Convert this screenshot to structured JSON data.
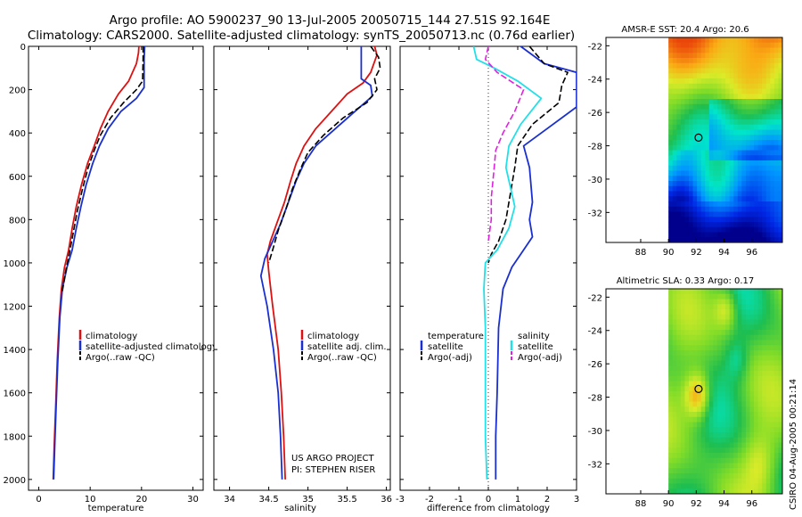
{
  "header": {
    "title_line1": "Argo profile: AO 5900237_90 13-Jul-2005 20050715_144 27.51S 92.164E",
    "title_line2": "Climatology: CARS2000. Satellite-adjusted climatology: synTS_20050713.nc (0.76d earlier)"
  },
  "side_label": "CSIRO 04-Aug-2005 00:21:14",
  "project_note": {
    "line1": "US ARGO PROJECT",
    "line2": "PI: STEPHEN RISER"
  },
  "colors": {
    "climatology": "#dd1111",
    "satellite": "#1a2fd0",
    "argo": "#000000",
    "salinity": "#22e0e8",
    "salinity_argo": "#e020e0"
  },
  "chart_data": [
    {
      "type": "line",
      "name": "temperature",
      "xlabel": "temperature",
      "ylabel": "",
      "xlim": [
        -2,
        32
      ],
      "ylim": [
        2050,
        0
      ],
      "xticks": [
        0,
        10,
        20,
        30
      ],
      "yticks": [
        0,
        200,
        400,
        600,
        800,
        1000,
        1200,
        1400,
        1600,
        1800,
        2000
      ],
      "series": [
        {
          "name": "climatology",
          "style": "solid",
          "color": "#dd1111",
          "points": [
            [
              19.5,
              0
            ],
            [
              19.4,
              30
            ],
            [
              19.0,
              80
            ],
            [
              17.5,
              160
            ],
            [
              15.5,
              220
            ],
            [
              13.5,
              300
            ],
            [
              12.0,
              380
            ],
            [
              10.8,
              460
            ],
            [
              9.5,
              540
            ],
            [
              8.3,
              640
            ],
            [
              7.3,
              740
            ],
            [
              6.5,
              840
            ],
            [
              5.8,
              940
            ],
            [
              5.0,
              1020
            ],
            [
              4.4,
              1120
            ],
            [
              4.0,
              1250
            ],
            [
              3.6,
              1450
            ],
            [
              3.3,
              1650
            ],
            [
              3.0,
              1850
            ],
            [
              2.8,
              2000
            ]
          ]
        },
        {
          "name": "satellite-adjusted climatology",
          "style": "solid",
          "color": "#1a2fd0",
          "points": [
            [
              20.6,
              0
            ],
            [
              20.5,
              60
            ],
            [
              20.5,
              190
            ],
            [
              19.0,
              240
            ],
            [
              16.0,
              300
            ],
            [
              13.5,
              380
            ],
            [
              11.8,
              460
            ],
            [
              10.5,
              540
            ],
            [
              9.2,
              640
            ],
            [
              8.2,
              740
            ],
            [
              7.3,
              840
            ],
            [
              6.5,
              940
            ],
            [
              5.5,
              1020
            ],
            [
              4.6,
              1120
            ],
            [
              4.1,
              1250
            ],
            [
              3.7,
              1450
            ],
            [
              3.4,
              1650
            ],
            [
              3.1,
              1850
            ],
            [
              2.9,
              2000
            ]
          ]
        },
        {
          "name": "Argo(..raw -QC)",
          "style": "dashed",
          "color": "#000000",
          "points": [
            [
              20.3,
              0
            ],
            [
              20.3,
              60
            ],
            [
              20.2,
              160
            ],
            [
              19.0,
              200
            ],
            [
              16.5,
              260
            ],
            [
              14.0,
              330
            ],
            [
              12.0,
              410
            ],
            [
              10.8,
              480
            ],
            [
              9.6,
              560
            ],
            [
              8.5,
              660
            ],
            [
              7.5,
              760
            ],
            [
              6.7,
              860
            ],
            [
              6.0,
              950
            ],
            [
              5.3,
              1030
            ],
            [
              4.6,
              1130
            ]
          ]
        }
      ],
      "legend": [
        "climatology",
        "satellite-adjusted climatology",
        "Argo(..raw -QC)"
      ]
    },
    {
      "type": "line",
      "name": "salinity",
      "xlabel": "salinity",
      "ylabel": "",
      "xlim": [
        33.8,
        36.05
      ],
      "ylim": [
        2050,
        0
      ],
      "xticks": [
        34,
        34.5,
        35,
        35.5,
        36
      ],
      "series": [
        {
          "name": "climatology",
          "style": "solid",
          "color": "#dd1111",
          "points": [
            [
              35.85,
              0
            ],
            [
              35.88,
              40
            ],
            [
              35.8,
              120
            ],
            [
              35.7,
              170
            ],
            [
              35.5,
              220
            ],
            [
              35.3,
              300
            ],
            [
              35.1,
              380
            ],
            [
              34.95,
              460
            ],
            [
              34.85,
              540
            ],
            [
              34.78,
              620
            ],
            [
              34.7,
              720
            ],
            [
              34.6,
              820
            ],
            [
              34.52,
              900
            ],
            [
              34.48,
              960
            ],
            [
              34.5,
              1040
            ],
            [
              34.55,
              1200
            ],
            [
              34.62,
              1400
            ],
            [
              34.66,
              1600
            ],
            [
              34.69,
              1800
            ],
            [
              34.71,
              2000
            ]
          ]
        },
        {
          "name": "satellite adj. clim.",
          "style": "solid",
          "color": "#1a2fd0",
          "points": [
            [
              35.68,
              0
            ],
            [
              35.68,
              150
            ],
            [
              35.8,
              180
            ],
            [
              35.82,
              230
            ],
            [
              35.6,
              300
            ],
            [
              35.35,
              380
            ],
            [
              35.1,
              460
            ],
            [
              34.95,
              540
            ],
            [
              34.85,
              620
            ],
            [
              34.75,
              720
            ],
            [
              34.65,
              820
            ],
            [
              34.55,
              900
            ],
            [
              34.45,
              980
            ],
            [
              34.4,
              1060
            ],
            [
              34.48,
              1200
            ],
            [
              34.56,
              1400
            ],
            [
              34.62,
              1600
            ],
            [
              34.65,
              1800
            ],
            [
              34.67,
              2000
            ]
          ]
        },
        {
          "name": "Argo(..raw -QC)",
          "style": "dashed",
          "color": "#000000",
          "points": [
            [
              35.8,
              0
            ],
            [
              35.9,
              50
            ],
            [
              35.92,
              100
            ],
            [
              35.85,
              150
            ],
            [
              35.88,
              200
            ],
            [
              35.75,
              260
            ],
            [
              35.45,
              330
            ],
            [
              35.2,
              410
            ],
            [
              35.0,
              490
            ],
            [
              34.9,
              570
            ],
            [
              34.8,
              660
            ],
            [
              34.72,
              750
            ],
            [
              34.62,
              850
            ],
            [
              34.55,
              940
            ],
            [
              34.5,
              1000
            ]
          ]
        }
      ],
      "legend": [
        "climatology",
        "satellite adj. clim.",
        "Argo(..raw -QC)"
      ]
    },
    {
      "type": "line",
      "name": "difference",
      "xlabel": "difference from climatology",
      "ylabel": "",
      "xlim": [
        -3,
        3
      ],
      "ylim": [
        2050,
        0
      ],
      "xticks": [
        -3,
        -2,
        -1,
        0,
        1,
        2,
        3
      ],
      "series": [
        {
          "name": "temperature satellite",
          "style": "solid",
          "color": "#1a2fd0",
          "points": [
            [
              1.1,
              0
            ],
            [
              1.9,
              80
            ],
            [
              3.0,
              120
            ],
            [
              3.0,
              280
            ],
            [
              2.0,
              380
            ],
            [
              1.2,
              460
            ],
            [
              1.4,
              560
            ],
            [
              1.5,
              720
            ],
            [
              1.4,
              800
            ],
            [
              1.5,
              880
            ],
            [
              1.1,
              960
            ],
            [
              0.8,
              1020
            ],
            [
              0.5,
              1120
            ],
            [
              0.35,
              1300
            ],
            [
              0.3,
              1600
            ],
            [
              0.25,
              1800
            ],
            [
              0.25,
              2000
            ]
          ]
        },
        {
          "name": "temperature Argo(-adj)",
          "style": "dashed",
          "color": "#000000",
          "points": [
            [
              1.4,
              0
            ],
            [
              1.9,
              80
            ],
            [
              2.7,
              120
            ],
            [
              2.5,
              180
            ],
            [
              2.4,
              260
            ],
            [
              1.5,
              360
            ],
            [
              1.0,
              460
            ],
            [
              0.9,
              560
            ],
            [
              0.7,
              720
            ],
            [
              0.6,
              800
            ],
            [
              0.35,
              900
            ],
            [
              0.1,
              960
            ],
            [
              0.0,
              1000
            ]
          ]
        },
        {
          "name": "salinity satellite",
          "style": "solid",
          "color": "#22e0e8",
          "points": [
            [
              -0.5,
              0
            ],
            [
              -0.4,
              60
            ],
            [
              0.2,
              100
            ],
            [
              1.0,
              160
            ],
            [
              1.8,
              240
            ],
            [
              1.1,
              360
            ],
            [
              0.7,
              460
            ],
            [
              0.6,
              560
            ],
            [
              0.9,
              740
            ],
            [
              0.7,
              840
            ],
            [
              0.3,
              940
            ],
            [
              -0.1,
              1000
            ],
            [
              -0.15,
              1120
            ],
            [
              -0.1,
              1300
            ],
            [
              -0.1,
              1600
            ],
            [
              -0.1,
              1800
            ],
            [
              -0.05,
              2000
            ]
          ]
        },
        {
          "name": "salinity Argo(-adj)",
          "style": "dashed",
          "color": "#e020e0",
          "points": [
            [
              0.0,
              0
            ],
            [
              -0.1,
              60
            ],
            [
              0.3,
              120
            ],
            [
              1.2,
              200
            ],
            [
              0.9,
              300
            ],
            [
              0.5,
              400
            ],
            [
              0.25,
              480
            ],
            [
              0.2,
              560
            ],
            [
              0.1,
              700
            ],
            [
              0.1,
              800
            ],
            [
              0.0,
              900
            ]
          ]
        }
      ],
      "legend_left": {
        "heading": "temperature",
        "items": [
          "satellite",
          "Argo(-adj)"
        ]
      },
      "legend_right": {
        "heading": "salinity",
        "items": [
          "satellite",
          "Argo(-adj)"
        ]
      }
    },
    {
      "type": "heatmap",
      "name": "sst_map",
      "title": "AMSR-E SST: 20.4 Argo: 20.6",
      "xlim": [
        85.5,
        98.2
      ],
      "ylim": [
        -33.8,
        -21.5
      ],
      "xticks": [
        88,
        90,
        92,
        94,
        96
      ],
      "yticks": [
        -22,
        -24,
        -26,
        -28,
        -30,
        -32
      ],
      "marker": [
        92.164,
        -27.51
      ]
    },
    {
      "type": "heatmap",
      "name": "sla_map",
      "title": "Altimetric SLA: 0.33 Argo: 0.17",
      "xlim": [
        85.5,
        98.2
      ],
      "ylim": [
        -33.8,
        -21.5
      ],
      "xticks": [
        88,
        90,
        92,
        94,
        96
      ],
      "yticks": [
        -22,
        -24,
        -26,
        -28,
        -30,
        -32
      ],
      "marker": [
        92.164,
        -27.51
      ]
    }
  ]
}
